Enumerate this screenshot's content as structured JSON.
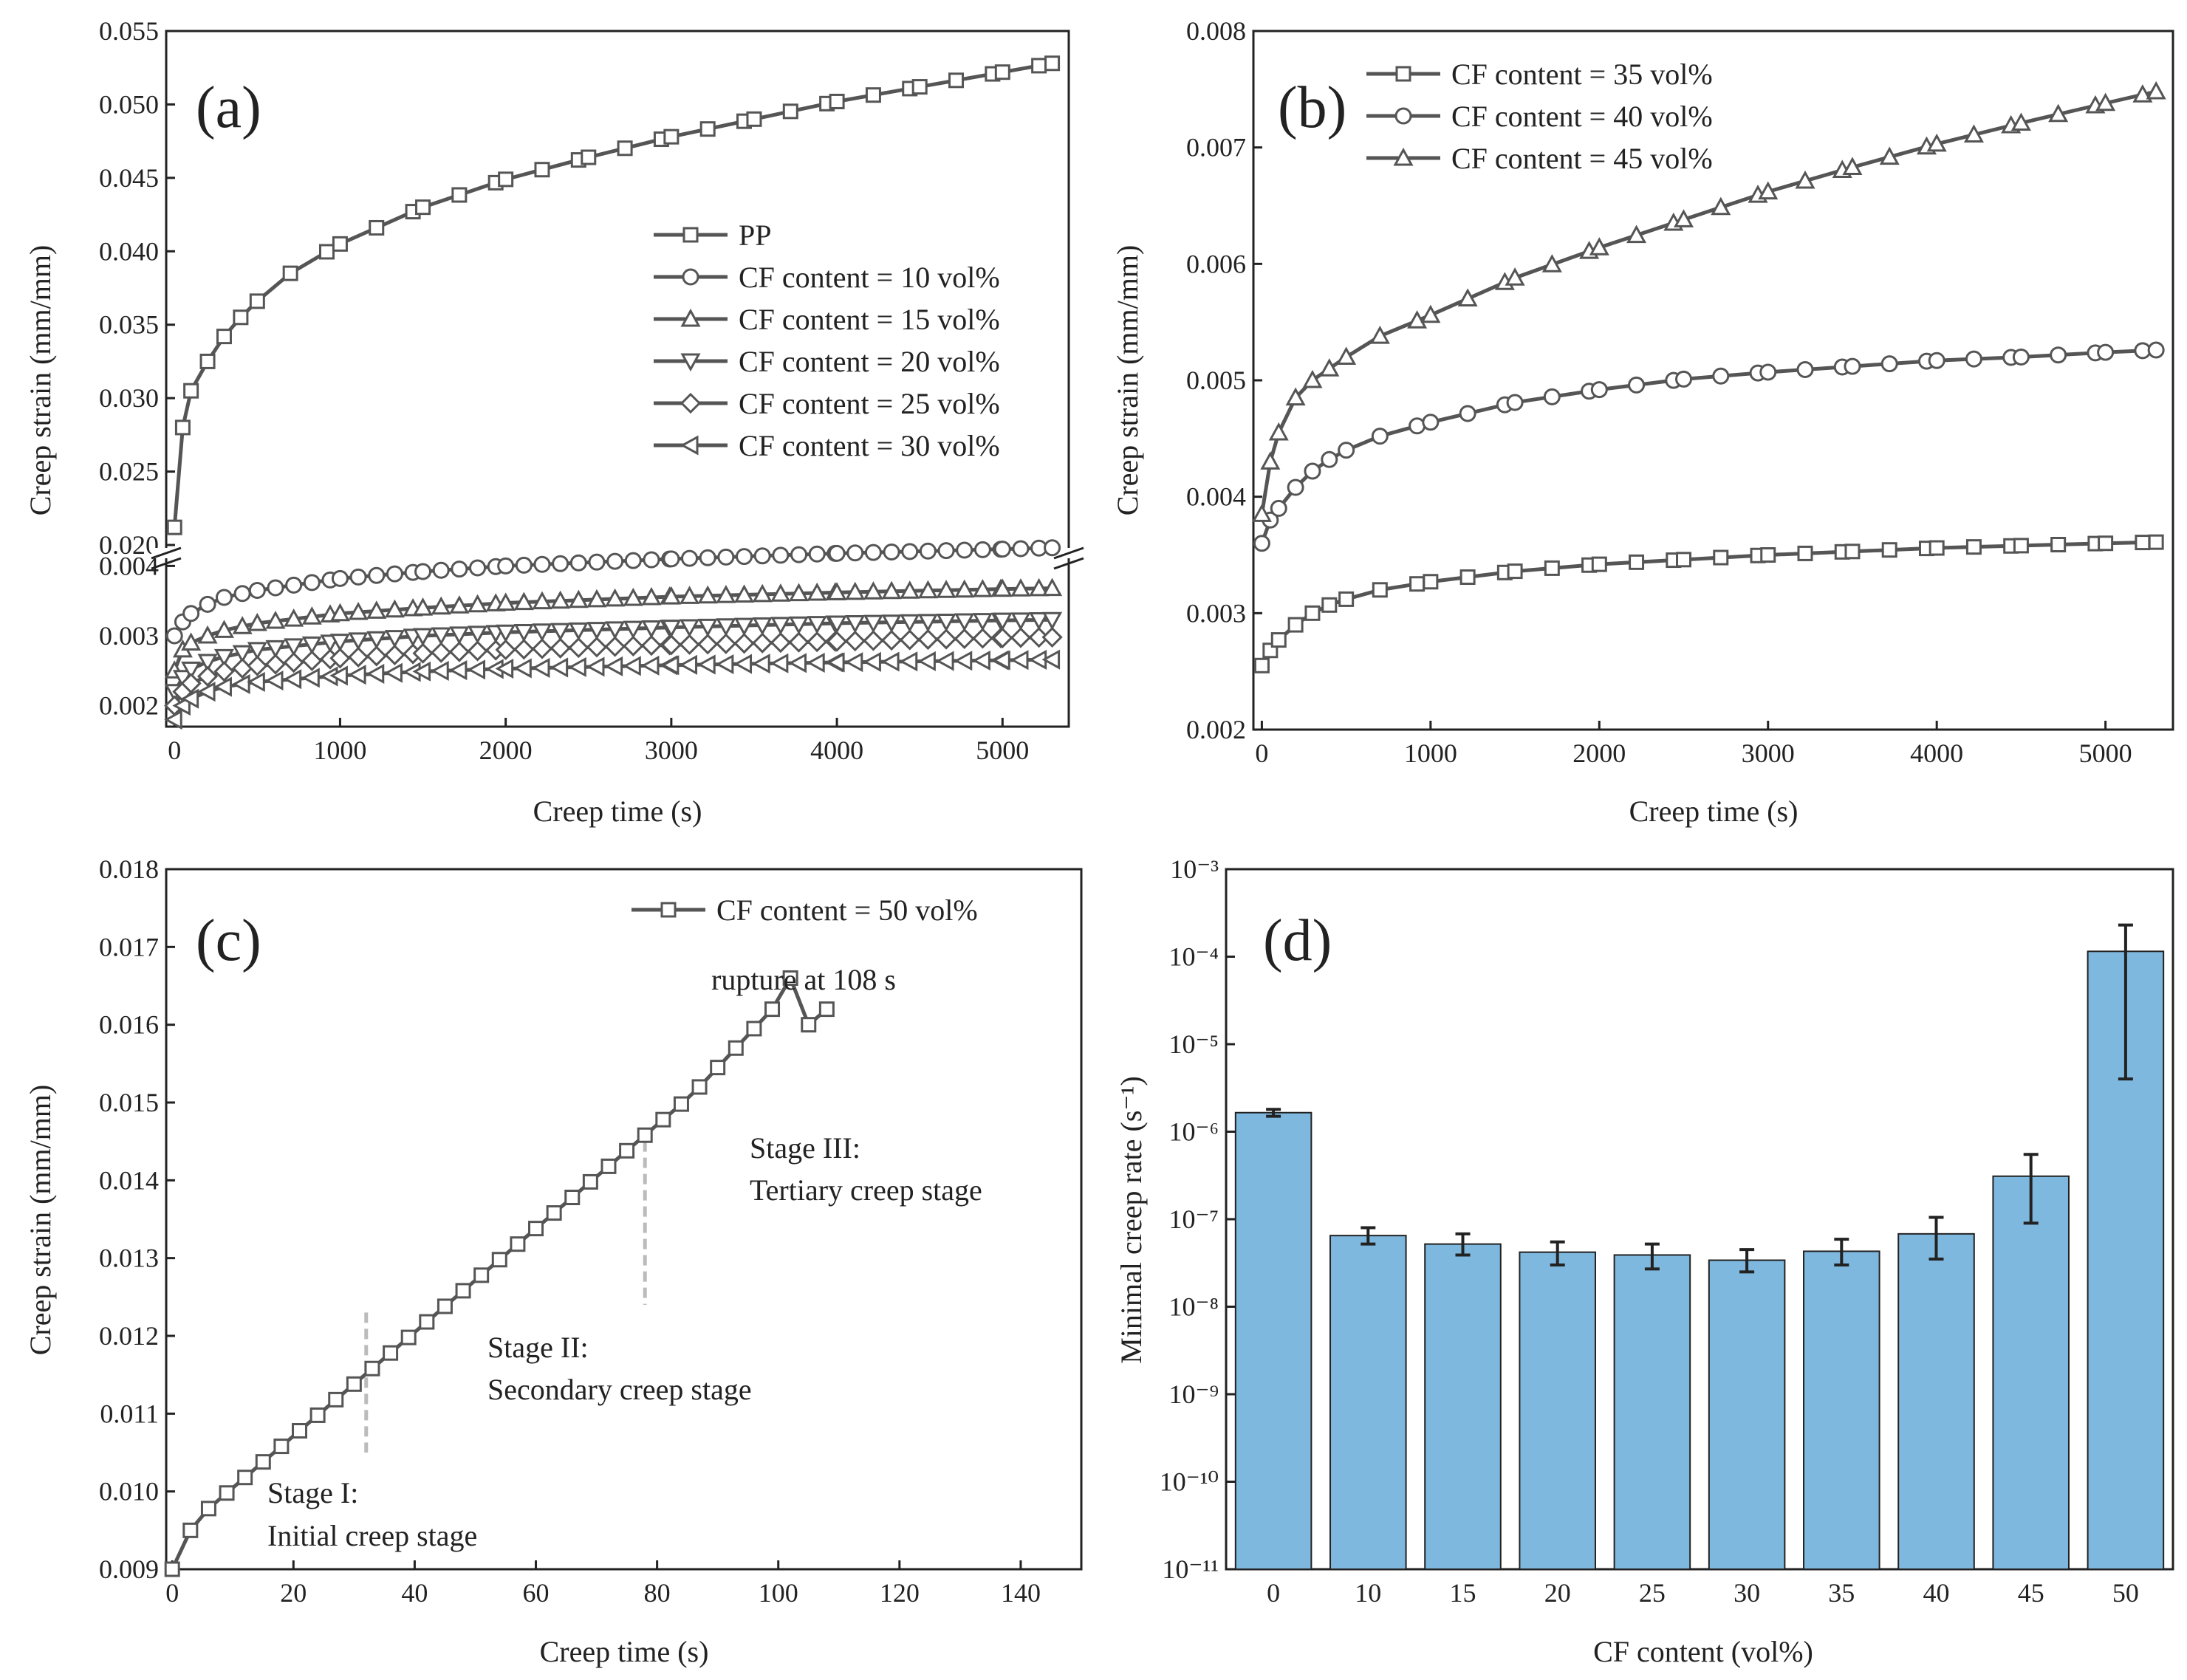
{
  "colors": {
    "axis": "#222222",
    "line": "#555555",
    "bar": "#7fb8de",
    "bar_edge": "#222222",
    "stage_divider": "#bbbbbb"
  },
  "chart_data": [
    {
      "panel": "(a)",
      "type": "line",
      "xlabel": "Creep time (s)",
      "ylabel": "Creep strain (mm/mm)",
      "xlim": [
        -50,
        5400
      ],
      "xticks": [
        0,
        1000,
        2000,
        3000,
        4000,
        5000
      ],
      "broken_y": {
        "upper_lim": [
          0.02,
          0.055
        ],
        "upper_ticks": [
          "0.020",
          "0.025",
          "0.030",
          "0.035",
          "0.040",
          "0.045",
          "0.050",
          "0.055"
        ],
        "lower_lim": [
          0.0017,
          0.0043
        ],
        "lower_ticks": [
          "0.002",
          "0.003",
          "0.004"
        ]
      },
      "legend_position": "center-right",
      "series": [
        {
          "name": "PP",
          "marker": "square",
          "segment": "upper",
          "x": [
            0,
            50,
            100,
            200,
            300,
            400,
            500,
            700,
            1000,
            1500,
            2000,
            2500,
            3000,
            3500,
            4000,
            4500,
            5000,
            5300
          ],
          "y": [
            0.0212,
            0.028,
            0.0305,
            0.0325,
            0.0342,
            0.0355,
            0.0366,
            0.0385,
            0.0405,
            0.043,
            0.0449,
            0.0464,
            0.0478,
            0.049,
            0.0502,
            0.0512,
            0.0522,
            0.0528
          ]
        },
        {
          "name": "CF content = 10 vol%",
          "marker": "circle",
          "segment": "lower",
          "x": [
            0,
            50,
            100,
            200,
            300,
            500,
            1000,
            1500,
            2000,
            3000,
            4000,
            5000,
            5300
          ],
          "y": [
            0.003,
            0.0032,
            0.00332,
            0.00345,
            0.00355,
            0.00365,
            0.00382,
            0.00392,
            0.004,
            0.0041,
            0.00418,
            0.00424,
            0.00426
          ]
        },
        {
          "name": "CF content = 15 vol%",
          "marker": "triangle-up",
          "segment": "lower",
          "x": [
            0,
            50,
            100,
            200,
            300,
            500,
            1000,
            1500,
            2000,
            3000,
            4000,
            5000,
            5300
          ],
          "y": [
            0.0025,
            0.0028,
            0.0029,
            0.003,
            0.00308,
            0.00318,
            0.00332,
            0.0034,
            0.00347,
            0.00356,
            0.00362,
            0.00367,
            0.00368
          ]
        },
        {
          "name": "CF content = 20 vol%",
          "marker": "triangle-down",
          "segment": "lower",
          "x": [
            0,
            50,
            100,
            200,
            300,
            500,
            1000,
            1500,
            2000,
            3000,
            4000,
            5000,
            5300
          ],
          "y": [
            0.0022,
            0.0024,
            0.00252,
            0.00263,
            0.0027,
            0.0028,
            0.00292,
            0.003,
            0.00305,
            0.00312,
            0.00318,
            0.00322,
            0.00323
          ]
        },
        {
          "name": "CF content = 25 vol%",
          "marker": "diamond",
          "segment": "lower",
          "x": [
            0,
            50,
            100,
            200,
            300,
            500,
            1000,
            1500,
            2000,
            3000,
            4000,
            5000,
            5300
          ],
          "y": [
            0.002,
            0.0022,
            0.00232,
            0.00242,
            0.00249,
            0.00257,
            0.00268,
            0.00275,
            0.0028,
            0.00287,
            0.00292,
            0.00297,
            0.00298
          ]
        },
        {
          "name": "CF content = 30 vol%",
          "marker": "triangle-left",
          "segment": "lower",
          "x": [
            0,
            50,
            100,
            200,
            300,
            500,
            1000,
            1500,
            2000,
            3000,
            4000,
            5000,
            5300
          ],
          "y": [
            0.0018,
            0.002,
            0.0021,
            0.0022,
            0.00227,
            0.00234,
            0.00243,
            0.00249,
            0.00253,
            0.00258,
            0.00262,
            0.00265,
            0.00266
          ]
        }
      ]
    },
    {
      "panel": "(b)",
      "type": "line",
      "xlabel": "Creep time (s)",
      "ylabel": "Creep strain (mm/mm)",
      "xlim": [
        -50,
        5400
      ],
      "xticks": [
        0,
        1000,
        2000,
        3000,
        4000,
        5000
      ],
      "ylim": [
        0.002,
        0.008
      ],
      "yticks": [
        "0.002",
        "0.003",
        "0.004",
        "0.005",
        "0.006",
        "0.007",
        "0.008"
      ],
      "legend_position": "top-left",
      "series": [
        {
          "name": "CF content = 35 vol%",
          "marker": "square",
          "x": [
            0,
            50,
            100,
            200,
            300,
            400,
            500,
            700,
            1000,
            1500,
            2000,
            2500,
            3000,
            3500,
            4000,
            4500,
            5000,
            5300
          ],
          "y": [
            0.00255,
            0.00268,
            0.00277,
            0.0029,
            0.003,
            0.00307,
            0.00312,
            0.0032,
            0.00327,
            0.00336,
            0.00342,
            0.00346,
            0.0035,
            0.00353,
            0.00356,
            0.00358,
            0.0036,
            0.00361
          ]
        },
        {
          "name": "CF content = 40 vol%",
          "marker": "circle",
          "x": [
            0,
            50,
            100,
            200,
            300,
            400,
            500,
            700,
            1000,
            1500,
            2000,
            2500,
            3000,
            3500,
            4000,
            4500,
            5000,
            5300
          ],
          "y": [
            0.0036,
            0.0038,
            0.0039,
            0.00408,
            0.00422,
            0.00432,
            0.0044,
            0.00452,
            0.00464,
            0.00481,
            0.00492,
            0.00501,
            0.00507,
            0.00512,
            0.00517,
            0.0052,
            0.00524,
            0.00526
          ]
        },
        {
          "name": "CF content = 45 vol%",
          "marker": "triangle-up",
          "x": [
            0,
            50,
            100,
            200,
            300,
            400,
            500,
            700,
            1000,
            1500,
            2000,
            2500,
            3000,
            3500,
            4000,
            4500,
            5000,
            5300
          ],
          "y": [
            0.00385,
            0.0043,
            0.00455,
            0.00485,
            0.005,
            0.0051,
            0.0052,
            0.00538,
            0.00556,
            0.00588,
            0.00614,
            0.00638,
            0.00662,
            0.00683,
            0.00703,
            0.00721,
            0.00738,
            0.00748
          ]
        }
      ]
    },
    {
      "panel": "(c)",
      "type": "line",
      "xlabel": "Creep time (s)",
      "ylabel": "Creep strain (mm/mm)",
      "xlim": [
        -1,
        150
      ],
      "xticks": [
        0,
        20,
        40,
        60,
        80,
        100,
        120,
        140
      ],
      "ylim": [
        0.009,
        0.018
      ],
      "yticks": [
        "0.009",
        "0.010",
        "0.011",
        "0.012",
        "0.013",
        "0.014",
        "0.015",
        "0.016",
        "0.017",
        "0.018"
      ],
      "legend_position": "top-right",
      "series": [
        {
          "name": "CF content = 50 vol%",
          "marker": "square",
          "x": [
            0,
            3,
            6,
            9,
            12,
            15,
            18,
            21,
            24,
            27,
            30,
            33,
            36,
            39,
            42,
            45,
            48,
            51,
            54,
            57,
            60,
            63,
            66,
            69,
            72,
            75,
            78,
            81,
            84,
            87,
            90,
            93,
            96,
            99,
            102,
            105,
            108
          ],
          "y": [
            0.009,
            0.0095,
            0.00978,
            0.00998,
            0.01018,
            0.01038,
            0.01058,
            0.01078,
            0.01098,
            0.01118,
            0.01138,
            0.01158,
            0.01178,
            0.01198,
            0.01218,
            0.01238,
            0.01258,
            0.01278,
            0.01298,
            0.01318,
            0.01338,
            0.01358,
            0.01378,
            0.01398,
            0.01418,
            0.01438,
            0.01458,
            0.01478,
            0.01498,
            0.0152,
            0.01545,
            0.0157,
            0.01595,
            0.0162,
            0.0166,
            0.016,
            0.0162
          ]
        }
      ],
      "stage_lines_x": [
        32,
        78
      ],
      "annotations": {
        "rupture": "rupture at 108 s",
        "stage1_title": "Stage I:",
        "stage1_desc": "Initial creep stage",
        "stage2_title": "Stage II:",
        "stage2_desc": "Secondary creep stage",
        "stage3_title": "Stage III:",
        "stage3_desc": "Tertiary creep stage"
      }
    },
    {
      "panel": "(d)",
      "type": "bar",
      "xlabel": "CF content (vol%)",
      "ylabel": "Minimal creep rate (s⁻¹)",
      "yscale": "log",
      "ylim_exponent": [
        -11,
        -3
      ],
      "ytick_labels": [
        "10⁻¹¹",
        "10⁻¹⁰",
        "10⁻⁹",
        "10⁻⁸",
        "10⁻⁷",
        "10⁻⁶",
        "10⁻⁵",
        "10⁻⁴",
        "10⁻³"
      ],
      "categories": [
        "0",
        "10",
        "15",
        "20",
        "25",
        "30",
        "35",
        "40",
        "45",
        "50"
      ],
      "values": [
        1.65e-06,
        6.5e-08,
        5.2e-08,
        4.2e-08,
        3.9e-08,
        3.4e-08,
        4.3e-08,
        6.8e-08,
        3.1e-07,
        0.000115
      ],
      "err_low": [
        1.5e-06,
        5.2e-08,
        3.9e-08,
        3e-08,
        2.7e-08,
        2.5e-08,
        3e-08,
        3.5e-08,
        9e-08,
        4e-06
      ],
      "err_high": [
        1.8e-06,
        8e-08,
        6.8e-08,
        5.5e-08,
        5.2e-08,
        4.5e-08,
        5.9e-08,
        1.05e-07,
        5.5e-07,
        0.00023
      ]
    }
  ]
}
